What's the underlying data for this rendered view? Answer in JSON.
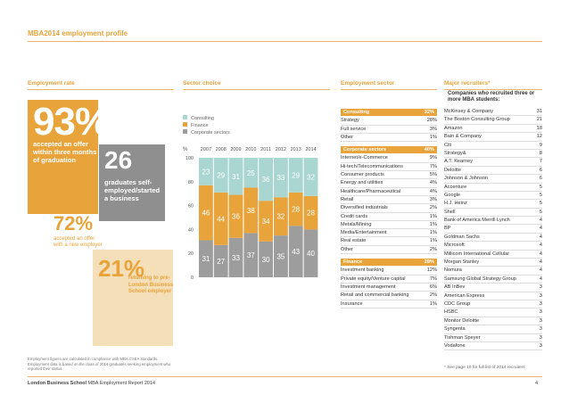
{
  "page_title": "MBA2014 employment profile",
  "sections": {
    "employment_rate": "Employment rate",
    "sector_choice": "Sector choice",
    "employment_sector": "Employment sector",
    "major_recruiters": "Major recruiters*"
  },
  "stats": {
    "big": {
      "value": "93%",
      "text": "accepted an offer within three months of graduation"
    },
    "self": {
      "value": "26",
      "text": "graduates self-employed/started a business"
    },
    "offer": {
      "value": "72%",
      "text": "accepted an offer with a new employer"
    },
    "prelbs": {
      "value": "21%",
      "text": "returning to pre-London Business School employer"
    }
  },
  "legend": {
    "consulting": "Consulting",
    "finance": "Finance",
    "corporate": "Corporate sectors"
  },
  "colors": {
    "consulting": "#a9d6d0",
    "finance": "#e8a33a",
    "corporate": "#9d9d9d",
    "accent": "#e8a33a"
  },
  "chart_data": {
    "type": "bar",
    "stacked": true,
    "unit_label": "%",
    "categories": [
      "2007",
      "2008",
      "2009",
      "2010",
      "2011",
      "2012",
      "2013",
      "2014"
    ],
    "series": [
      {
        "name": "Corporate sectors",
        "values": [
          31,
          27,
          33,
          37,
          30,
          35,
          43,
          40
        ]
      },
      {
        "name": "Finance",
        "values": [
          46,
          44,
          36,
          38,
          34,
          32,
          28,
          28
        ]
      },
      {
        "name": "Consulting",
        "values": [
          23,
          29,
          31,
          25,
          36,
          33,
          29,
          32
        ]
      }
    ],
    "yticks": [
      "0",
      "20",
      "40",
      "60",
      "80",
      "100"
    ],
    "ylim": [
      0,
      100
    ]
  },
  "sector_tables": [
    {
      "head": {
        "name": "Consulting",
        "value": "32%"
      },
      "rows": [
        {
          "name": "Strategy",
          "value": "28%"
        },
        {
          "name": "Full service",
          "value": "3%"
        },
        {
          "name": "Other",
          "value": "1%"
        }
      ]
    },
    {
      "head": {
        "name": "Corporate sectors",
        "value": "40%"
      },
      "rows": [
        {
          "name": "Internet/e-Commerce",
          "value": "9%"
        },
        {
          "name": "Hi-tech/Telecommunications",
          "value": "7%"
        },
        {
          "name": "Consumer products",
          "value": "5%"
        },
        {
          "name": "Energy and utilities",
          "value": "4%"
        },
        {
          "name": "Healthcare/Pharmaceutical",
          "value": "4%"
        },
        {
          "name": "Retail",
          "value": "3%"
        },
        {
          "name": "Diversified industrials",
          "value": "2%"
        },
        {
          "name": "Credit cards",
          "value": "1%"
        },
        {
          "name": "Metals/Mining",
          "value": "1%"
        },
        {
          "name": "Media/Entertainment",
          "value": "1%"
        },
        {
          "name": "Real estate",
          "value": "1%"
        },
        {
          "name": "Other",
          "value": "2%"
        }
      ]
    },
    {
      "head": {
        "name": "Finance",
        "value": "28%"
      },
      "rows": [
        {
          "name": "Investment banking",
          "value": "12%"
        },
        {
          "name": "Private equity/Venture capital",
          "value": "7%"
        },
        {
          "name": "Investment management",
          "value": "6%"
        },
        {
          "name": "Retail and commercial banking",
          "value": "2%"
        },
        {
          "name": "Insurance",
          "value": "1%"
        }
      ]
    }
  ],
  "recruiters_subtitle": "Companies who recruited three or more MBA students:",
  "recruiters": [
    {
      "name": "McKinsey & Company",
      "value": "31"
    },
    {
      "name": "The Boston Consulting Group",
      "value": "21"
    },
    {
      "name": "Amazon",
      "value": "18"
    },
    {
      "name": "Bain & Company",
      "value": "12"
    },
    {
      "name": "Citi",
      "value": "9"
    },
    {
      "name": "Strategy&",
      "value": "8"
    },
    {
      "name": "A.T. Kearney",
      "value": "7"
    },
    {
      "name": "Deloitte",
      "value": "6"
    },
    {
      "name": "Johnson & Johnson",
      "value": "6"
    },
    {
      "name": "Accenture",
      "value": "5"
    },
    {
      "name": "Google",
      "value": "5"
    },
    {
      "name": "H.J. Heinz",
      "value": "5"
    },
    {
      "name": "Shell",
      "value": "5"
    },
    {
      "name": "Bank of America Merrill Lynch",
      "value": "4"
    },
    {
      "name": "BP",
      "value": "4"
    },
    {
      "name": "Goldman Sachs",
      "value": "4"
    },
    {
      "name": "Microsoft",
      "value": "4"
    },
    {
      "name": "Millicom International Cellular",
      "value": "4"
    },
    {
      "name": "Morgan Stanley",
      "value": "4"
    },
    {
      "name": "Nomura",
      "value": "4"
    },
    {
      "name": "Samsung Global Strategy Group",
      "value": "4"
    },
    {
      "name": "AB InBev",
      "value": "3"
    },
    {
      "name": "American Express",
      "value": "3"
    },
    {
      "name": "CDC Group",
      "value": "3"
    },
    {
      "name": "HSBC",
      "value": "3"
    },
    {
      "name": "Monitor Deloitte",
      "value": "3"
    },
    {
      "name": "Syngenta",
      "value": "3"
    },
    {
      "name": "Tishman Speyer",
      "value": "3"
    },
    {
      "name": "Vodafone",
      "value": "3"
    }
  ],
  "recruiters_note": "* See page 10 for full list of 2014 recruiters",
  "footnote": "Employment figures are calculated in compliance with MBA CSEA standards. Employment data is based on the class of 2014 graduates seeking employment who reported their status.",
  "footer": {
    "school": "London Business School",
    "report": "MBA Employment Report 2014",
    "page": "4"
  }
}
